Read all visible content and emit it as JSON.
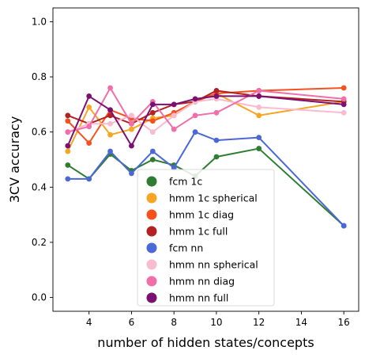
{
  "chart_data": {
    "type": "line",
    "title": "",
    "xlabel": "number of hidden states/concepts",
    "ylabel": "3CV accuracy",
    "xlim": [
      2.3,
      16.7
    ],
    "ylim": [
      -0.05,
      1.05
    ],
    "xticks": [
      4,
      6,
      8,
      10,
      12,
      14,
      16
    ],
    "yticks": [
      0.0,
      0.2,
      0.4,
      0.6,
      0.8,
      1.0
    ],
    "xtick_labels": [
      "4",
      "6",
      "8",
      "10",
      "12",
      "14",
      "16"
    ],
    "ytick_labels": [
      "0.0",
      "0.2",
      "0.4",
      "0.6",
      "0.8",
      "1.0"
    ],
    "grid": false,
    "legend_position": "lower center",
    "x": [
      3,
      4,
      5,
      6,
      7,
      8,
      9,
      10,
      12,
      16
    ],
    "series": [
      {
        "name": "fcm 1c",
        "color": "#2e7d32",
        "values": [
          0.48,
          0.43,
          0.52,
          0.46,
          0.5,
          0.48,
          0.44,
          0.51,
          0.54,
          0.26
        ]
      },
      {
        "name": "hmm 1c spherical",
        "color": "#f5a623",
        "values": [
          0.53,
          0.69,
          0.59,
          0.61,
          0.65,
          0.66,
          0.71,
          0.74,
          0.66,
          0.71
        ]
      },
      {
        "name": "hmm 1c diag",
        "color": "#f4511e",
        "values": [
          0.64,
          0.56,
          0.68,
          0.65,
          0.64,
          0.67,
          0.71,
          0.74,
          0.75,
          0.76
        ]
      },
      {
        "name": "hmm 1c full",
        "color": "#b22222",
        "values": [
          0.66,
          0.63,
          0.66,
          0.63,
          0.67,
          0.7,
          0.71,
          0.75,
          0.73,
          0.71
        ]
      },
      {
        "name": "fcm nn",
        "color": "#4a69d6",
        "values": [
          0.43,
          0.43,
          0.53,
          0.45,
          0.53,
          0.47,
          0.6,
          0.57,
          0.58,
          0.26
        ]
      },
      {
        "name": "hmm nn spherical",
        "color": "#f8bbd0",
        "values": [
          0.6,
          0.63,
          0.63,
          0.66,
          0.6,
          0.66,
          0.71,
          0.72,
          0.69,
          0.67
        ]
      },
      {
        "name": "hmm nn diag",
        "color": "#f06eaa",
        "values": [
          0.6,
          0.62,
          0.76,
          0.63,
          0.71,
          0.61,
          0.66,
          0.67,
          0.75,
          0.72
        ]
      },
      {
        "name": "hmm nn full",
        "color": "#7b1070",
        "values": [
          0.55,
          0.73,
          0.68,
          0.55,
          0.7,
          0.7,
          0.72,
          0.73,
          0.73,
          0.7
        ]
      }
    ]
  }
}
